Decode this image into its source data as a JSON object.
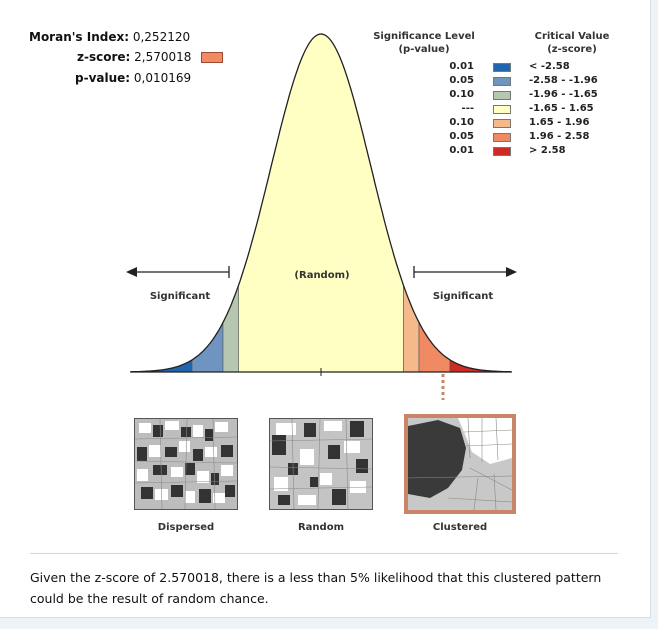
{
  "stats": {
    "morans_label": "Moran's Index:",
    "morans_value": "0,252120",
    "zscore_label": "z-score:",
    "zscore_value": "2,570018",
    "zscore_color": "#ef8a62",
    "pvalue_label": "p-value:",
    "pvalue_value": "0,010169"
  },
  "legend": {
    "sig_header_1": "Significance Level",
    "sig_header_2": "(p-value)",
    "crit_header_1": "Critical Value",
    "crit_header_2": "(z-score)",
    "rows": [
      {
        "p": "0.01",
        "z": "< -2.58",
        "color": "#2166ac"
      },
      {
        "p": "0.05",
        "z": "-2.58 - -1.96",
        "color": "#6f94c0"
      },
      {
        "p": "0.10",
        "z": "-1.96 - -1.65",
        "color": "#b5c7b1"
      },
      {
        "p": "---",
        "z": "-1.65 - 1.65",
        "color": "#ffffc4"
      },
      {
        "p": "0.10",
        "z": "1.65 - 1.96",
        "color": "#f6b98c"
      },
      {
        "p": "0.05",
        "z": "1.96 - 2.58",
        "color": "#ef8a62"
      },
      {
        "p": "0.01",
        "z": "> 2.58",
        "color": "#cc2b26"
      }
    ]
  },
  "curve": {
    "random_label": "(Random)",
    "left_label": "Significant",
    "right_label": "Significant"
  },
  "patterns": [
    {
      "label": "Dispersed"
    },
    {
      "label": "Random"
    },
    {
      "label": "Clustered"
    }
  ],
  "caption": "Given the z-score of 2.570018, there is a less than 5% likelihood that this clustered pattern could be the result of random chance."
}
